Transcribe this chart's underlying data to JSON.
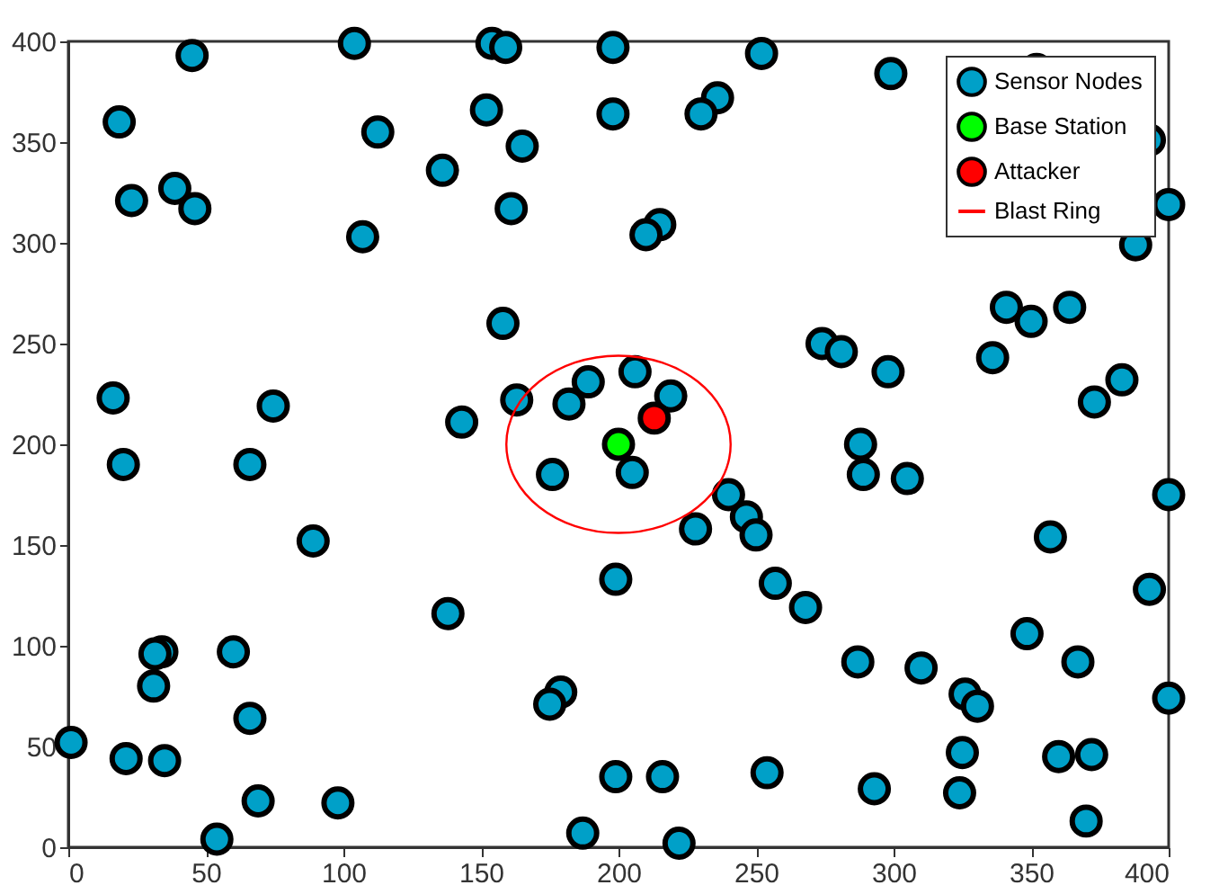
{
  "chart_data": {
    "type": "scatter",
    "xlim": [
      0,
      400
    ],
    "ylim": [
      0,
      400
    ],
    "xticks": [
      0,
      50,
      100,
      150,
      200,
      250,
      300,
      350,
      400
    ],
    "yticks": [
      0,
      50,
      100,
      150,
      200,
      250,
      300,
      350,
      400
    ],
    "grid": false,
    "legend": "top right",
    "marker": "circle",
    "series": [
      {
        "name": "Sensor Nodes",
        "color": "#00a0c8",
        "x": [
          45,
          104,
          154,
          159,
          198,
          18.5,
          112.5,
          152,
          198,
          165,
          136,
          23,
          38.7,
          46,
          161,
          107,
          158,
          16.3,
          74.5,
          143,
          163,
          182,
          189,
          252,
          299,
          352,
          236,
          230,
          393,
          400,
          388,
          215,
          210,
          341,
          350,
          364,
          274,
          281,
          298,
          336,
          383,
          373,
          206,
          219,
          288,
          20,
          66,
          176,
          89,
          199,
          138,
          34,
          31.5,
          60,
          31,
          179,
          175,
          66,
          1,
          21,
          35,
          69,
          98,
          54,
          187,
          199,
          205,
          289,
          305,
          400,
          240,
          246.5,
          250,
          228,
          357,
          257,
          268,
          393,
          348.5,
          287,
          310,
          367,
          400,
          326,
          330.5,
          325,
          360,
          372,
          216,
          254,
          293,
          324,
          370,
          222
        ],
        "values": [
          393,
          399,
          399,
          397,
          397,
          360,
          355,
          366,
          364,
          348,
          336,
          321,
          327,
          317,
          317,
          303,
          260,
          223,
          219,
          211,
          222,
          220,
          231,
          394,
          384,
          386,
          372,
          364,
          351,
          319,
          299,
          309,
          304,
          268,
          261,
          268,
          250,
          246,
          236,
          243,
          232,
          221,
          236,
          224,
          200,
          190,
          190,
          185,
          152,
          133,
          116,
          97,
          96,
          97,
          80,
          77,
          71,
          64,
          52,
          44,
          43,
          23,
          22,
          4,
          7,
          35,
          186,
          185,
          183,
          175,
          175,
          164,
          155,
          158,
          154,
          131,
          119,
          128,
          106,
          92,
          89,
          92,
          74,
          76,
          70,
          47,
          45,
          46,
          35,
          37,
          29,
          27,
          13,
          2
        ]
      },
      {
        "name": "Base Station",
        "color": "#00ff00",
        "x": [
          200
        ],
        "values": [
          200
        ]
      },
      {
        "name": "Attacker",
        "color": "#ff0000",
        "x": [
          213
        ],
        "values": [
          213
        ]
      },
      {
        "name": "Blast Ring",
        "color": "#ff0000",
        "type": "line"
      }
    ]
  }
}
